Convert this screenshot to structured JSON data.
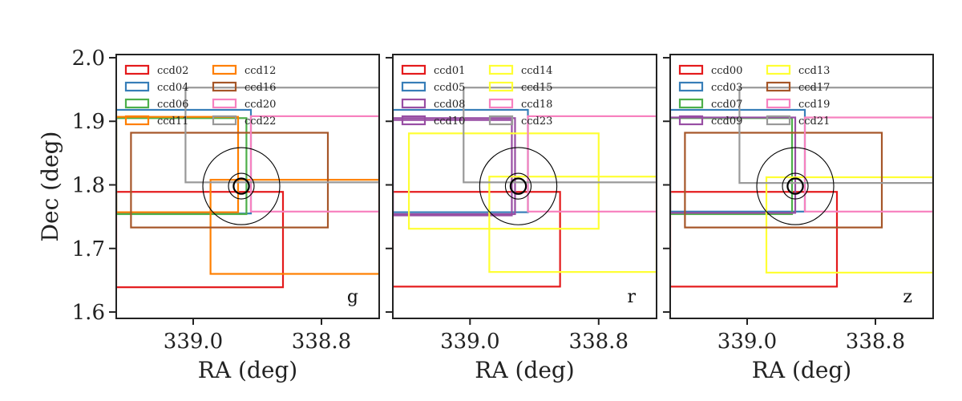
{
  "chart_data": [
    {
      "type": "footprint",
      "band": "g",
      "xlabel": "RA (deg)",
      "ylabel": "Dec (deg)",
      "xlim": [
        339.12,
        338.71
      ],
      "ylim": [
        1.59,
        2.005
      ],
      "xticks": [
        339.0,
        338.8
      ],
      "xtick_labels": [
        "339.0",
        "338.8"
      ],
      "yticks": [
        1.6,
        1.7,
        1.8,
        1.9,
        2.0
      ],
      "ytick_labels": [
        "1.6",
        "1.7",
        "1.8",
        "1.9",
        "2.0"
      ],
      "target": {
        "ra": 338.925,
        "dec": 1.798,
        "radii": [
          0.06,
          0.02,
          0.012
        ]
      },
      "legend_position": "top-left",
      "rects": [
        {
          "name": "ccd02",
          "color": "#e41a1c",
          "ra_min": 338.86,
          "ra_max": 339.12,
          "dec_min": 1.639,
          "dec_max": 1.789
        },
        {
          "name": "ccd04",
          "color": "#377eb8",
          "ra_min": 338.91,
          "ra_max": 339.12,
          "dec_min": 1.755,
          "dec_max": 1.918
        },
        {
          "name": "ccd06",
          "color": "#4daf4a",
          "ra_min": 338.917,
          "ra_max": 339.12,
          "dec_min": 1.754,
          "dec_max": 1.905
        },
        {
          "name": "ccd11",
          "color": "#ff7f00",
          "ra_min": 338.93,
          "ra_max": 339.12,
          "dec_min": 1.757,
          "dec_max": 1.907
        },
        {
          "name": "ccd12",
          "color": "#ff7f00",
          "ra_min": 338.71,
          "ra_max": 338.973,
          "dec_min": 1.66,
          "dec_max": 1.808
        },
        {
          "name": "ccd16",
          "color": "#a65628",
          "ra_min": 338.79,
          "ra_max": 339.097,
          "dec_min": 1.733,
          "dec_max": 1.882
        },
        {
          "name": "ccd20",
          "color": "#f781bf",
          "ra_min": 338.71,
          "ra_max": 338.91,
          "dec_min": 1.758,
          "dec_max": 1.908
        },
        {
          "name": "ccd22",
          "color": "#999999",
          "ra_min": 338.71,
          "ra_max": 339.012,
          "dec_min": 1.804,
          "dec_max": 1.953
        }
      ]
    },
    {
      "type": "footprint",
      "band": "r",
      "xlabel": "RA (deg)",
      "ylabel": "",
      "xlim": [
        339.12,
        338.71
      ],
      "ylim": [
        1.59,
        2.005
      ],
      "xticks": [
        339.0,
        338.8
      ],
      "xtick_labels": [
        "339.0",
        "338.8"
      ],
      "yticks": [
        1.6,
        1.7,
        1.8,
        1.9,
        2.0
      ],
      "ytick_labels": [],
      "target": {
        "ra": 338.925,
        "dec": 1.798,
        "radii": [
          0.06,
          0.02,
          0.012
        ]
      },
      "legend_position": "top-left",
      "rects": [
        {
          "name": "ccd01",
          "color": "#e41a1c",
          "ra_min": 338.86,
          "ra_max": 339.12,
          "dec_min": 1.64,
          "dec_max": 1.789
        },
        {
          "name": "ccd05",
          "color": "#377eb8",
          "ra_min": 338.91,
          "ra_max": 339.12,
          "dec_min": 1.757,
          "dec_max": 1.918
        },
        {
          "name": "ccd08",
          "color": "#984ea3",
          "ra_min": 338.93,
          "ra_max": 339.12,
          "dec_min": 1.754,
          "dec_max": 1.905
        },
        {
          "name": "ccd10",
          "color": "#984ea3",
          "ra_min": 338.935,
          "ra_max": 339.12,
          "dec_min": 1.752,
          "dec_max": 1.902
        },
        {
          "name": "ccd14",
          "color": "#ffff33",
          "ra_min": 338.8,
          "ra_max": 339.095,
          "dec_min": 1.731,
          "dec_max": 1.881
        },
        {
          "name": "ccd15",
          "color": "#ffff33",
          "ra_min": 338.71,
          "ra_max": 338.97,
          "dec_min": 1.663,
          "dec_max": 1.813
        },
        {
          "name": "ccd18",
          "color": "#f781bf",
          "ra_min": 338.71,
          "ra_max": 338.91,
          "dec_min": 1.758,
          "dec_max": 1.908
        },
        {
          "name": "ccd23",
          "color": "#999999",
          "ra_min": 338.71,
          "ra_max": 339.01,
          "dec_min": 1.804,
          "dec_max": 1.953
        }
      ]
    },
    {
      "type": "footprint",
      "band": "z",
      "xlabel": "RA (deg)",
      "ylabel": "",
      "xlim": [
        339.12,
        338.71
      ],
      "ylim": [
        1.59,
        2.005
      ],
      "xticks": [
        339.0,
        338.8
      ],
      "xtick_labels": [
        "339.0",
        "338.8"
      ],
      "yticks": [
        1.6,
        1.7,
        1.8,
        1.9,
        2.0
      ],
      "ytick_labels": [],
      "target": {
        "ra": 338.925,
        "dec": 1.798,
        "radii": [
          0.06,
          0.02,
          0.012
        ]
      },
      "legend_position": "top-left",
      "rects": [
        {
          "name": "ccd00",
          "color": "#e41a1c",
          "ra_min": 338.86,
          "ra_max": 339.12,
          "dec_min": 1.64,
          "dec_max": 1.789
        },
        {
          "name": "ccd03",
          "color": "#377eb8",
          "ra_min": 338.91,
          "ra_max": 339.12,
          "dec_min": 1.758,
          "dec_max": 1.918
        },
        {
          "name": "ccd07",
          "color": "#4daf4a",
          "ra_min": 338.93,
          "ra_max": 339.12,
          "dec_min": 1.754,
          "dec_max": 1.905
        },
        {
          "name": "ccd09",
          "color": "#984ea3",
          "ra_min": 338.925,
          "ra_max": 339.12,
          "dec_min": 1.756,
          "dec_max": 1.906
        },
        {
          "name": "ccd13",
          "color": "#ffff33",
          "ra_min": 338.71,
          "ra_max": 338.97,
          "dec_min": 1.662,
          "dec_max": 1.812
        },
        {
          "name": "ccd17",
          "color": "#a65628",
          "ra_min": 338.79,
          "ra_max": 339.097,
          "dec_min": 1.733,
          "dec_max": 1.882
        },
        {
          "name": "ccd19",
          "color": "#f781bf",
          "ra_min": 338.71,
          "ra_max": 338.91,
          "dec_min": 1.758,
          "dec_max": 1.906
        },
        {
          "name": "ccd21",
          "color": "#999999",
          "ra_min": 338.71,
          "ra_max": 339.012,
          "dec_min": 1.803,
          "dec_max": 1.953
        }
      ]
    }
  ]
}
